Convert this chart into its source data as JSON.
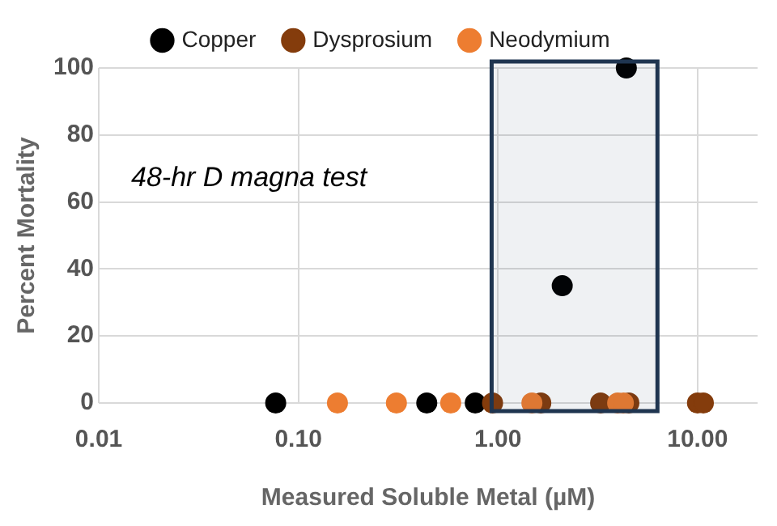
{
  "chart_data": {
    "type": "scatter",
    "xlabel": "Measured Soluble Metal (µM)",
    "ylabel": "Percent Mortality",
    "log": "x",
    "xlim": [
      0.01,
      20
    ],
    "xticks": [
      {
        "value": 0.01,
        "label": "0.01"
      },
      {
        "value": 0.1,
        "label": "0.10"
      },
      {
        "value": 1,
        "label": "1.00"
      },
      {
        "value": 10,
        "label": "10.00"
      }
    ],
    "ylim": [
      0,
      100
    ],
    "yticks": [
      0,
      20,
      40,
      60,
      80,
      100
    ],
    "grid": true,
    "legend": "top",
    "marker": "circle",
    "series": [
      {
        "name": "Copper",
        "color": "#000000",
        "x": [
          0.077,
          0.44,
          0.77,
          2.1,
          4.4
        ],
        "values": [
          0,
          0,
          0,
          35,
          100
        ]
      },
      {
        "name": "Dysprosium",
        "color": "#843c0c",
        "x": [
          0.94,
          1.64,
          3.27,
          4.53,
          10,
          10.7
        ],
        "values": [
          0,
          0,
          0,
          0,
          0,
          0
        ]
      },
      {
        "name": "Neodymium",
        "color": "#ed7d31",
        "x": [
          0.157,
          0.31,
          0.58,
          1.48,
          3.98,
          4.25
        ],
        "values": [
          0,
          0,
          0,
          0,
          0,
          0
        ]
      }
    ],
    "bands": [
      {
        "axis": "x",
        "from": 0.93,
        "to": 6.3,
        "color": "#1f3550"
      }
    ],
    "annotations": [
      "48-hr D magna test"
    ]
  }
}
